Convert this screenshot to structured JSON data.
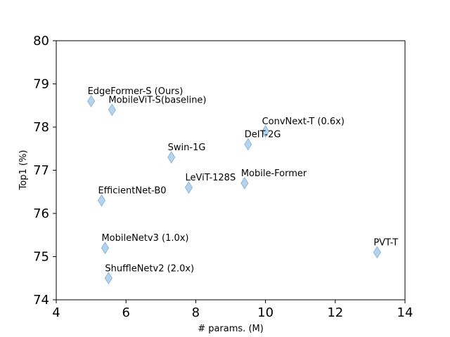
{
  "chart_data": {
    "type": "scatter",
    "xlabel": "# params. (M)",
    "ylabel": "Top1 (%)",
    "xlim": [
      4,
      14
    ],
    "ylim": [
      74,
      80
    ],
    "xticks": [
      "4",
      "6",
      "8",
      "10",
      "12",
      "14"
    ],
    "yticks": [
      "74",
      "75",
      "76",
      "77",
      "78",
      "79",
      "80"
    ],
    "grid": false,
    "marker_color": "#a8cce8",
    "points": [
      {
        "label": "EdgeFormer-S (Ours)",
        "x": 5.0,
        "y": 78.6
      },
      {
        "label": "MobileViT-S(baseline)",
        "x": 5.6,
        "y": 78.4
      },
      {
        "label": "ConvNext-T (0.6x)",
        "x": 10.0,
        "y": 77.9
      },
      {
        "label": "DeIT-2G",
        "x": 9.5,
        "y": 77.6
      },
      {
        "label": "Swin-1G",
        "x": 7.3,
        "y": 77.3
      },
      {
        "label": "LeViT-128S",
        "x": 7.8,
        "y": 76.6
      },
      {
        "label": "Mobile-Former",
        "x": 9.4,
        "y": 76.7
      },
      {
        "label": "EfficientNet-B0",
        "x": 5.3,
        "y": 76.3
      },
      {
        "label": "MobileNetv3 (1.0x)",
        "x": 5.4,
        "y": 75.2
      },
      {
        "label": "ShuffleNetv2 (2.0x)",
        "x": 5.5,
        "y": 74.5
      },
      {
        "label": "PVT-T",
        "x": 13.2,
        "y": 75.1
      }
    ]
  }
}
